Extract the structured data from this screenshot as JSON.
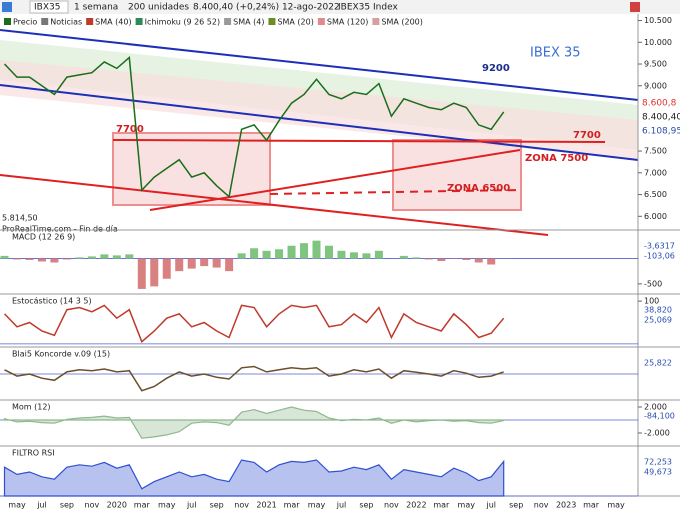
{
  "toolbar": {
    "symbol": "IBX35",
    "period": "1 semana",
    "units": "200 unidades",
    "quote": "8.400,40 (+0,24%) 12-ago-2022",
    "instrument": "IBEX35 Index"
  },
  "legend_items": [
    {
      "label": "Precio",
      "color": "#1a6e1a"
    },
    {
      "label": "Noticias",
      "color": "#777777"
    },
    {
      "label": "SMA (40)",
      "color": "#c0392b"
    },
    {
      "label": "Ichimoku (9 26 52)",
      "color": "#2e8b57"
    },
    {
      "label": "SMA (4)",
      "color": "#999999"
    },
    {
      "label": "SMA (20)",
      "color": "#6b8e23"
    },
    {
      "label": "SMA (120)",
      "color": "#e08a8a"
    },
    {
      "label": "SMA (200)",
      "color": "#d4a0a0"
    }
  ],
  "footer": "ProRealTime.com - Fin de día",
  "x_axis_labels": [
    "may",
    "jul",
    "sep",
    "nov",
    "2020",
    "mar",
    "may",
    "jul",
    "sep",
    "nov",
    "2021",
    "mar",
    "may",
    "jul",
    "sep",
    "nov",
    "2022",
    "mar",
    "may",
    "jul",
    "sep",
    "nov",
    "2023",
    "mar",
    "may"
  ],
  "chart_data": [
    {
      "type": "line",
      "title": "IBEX 35",
      "series": [
        {
          "name": "Precio",
          "color": "#1a6e1a",
          "values": [
            9500,
            9200,
            9200,
            9000,
            8800,
            9200,
            9250,
            9300,
            9550,
            9400,
            9650,
            6600,
            6900,
            7100,
            7300,
            6900,
            7000,
            6700,
            6450,
            8000,
            8100,
            7750,
            8200,
            8600,
            8800,
            9150,
            8800,
            8700,
            8850,
            8800,
            9050,
            8300,
            8700,
            8600,
            8500,
            8450,
            8600,
            8500,
            8100,
            8000,
            8400
          ]
        }
      ],
      "ylim": [
        5800,
        10650
      ],
      "yticks": [
        {
          "value": 10500,
          "label": "10.500"
        },
        {
          "value": 10000,
          "label": "10.000"
        },
        {
          "value": 9500,
          "label": "9.500"
        },
        {
          "value": 9000,
          "label": "9.000"
        },
        {
          "value": 7500,
          "label": "7.500"
        },
        {
          "value": 7000,
          "label": "7.000"
        },
        {
          "value": 6500,
          "label": "6.500"
        },
        {
          "value": 6000,
          "label": "6.000"
        }
      ],
      "annotations": {
        "level_9200": "9200",
        "level_7700_left": "7700",
        "level_7700_right": "7700",
        "zone_7500": "ZONA 7500",
        "zone_6500": "ZONA 6500",
        "low": "5.814,50"
      },
      "price_labels": [
        {
          "text": "8.600,8",
          "color": "#e03030"
        },
        {
          "text": "8.400,40",
          "color": "#222222"
        },
        {
          "text": "6.108,95",
          "color": "#2a4db0"
        }
      ]
    },
    {
      "type": "bar",
      "title": "MACD (12 26 9)",
      "values": [
        50,
        -20,
        -30,
        -60,
        -80,
        -20,
        20,
        40,
        80,
        60,
        80,
        -600,
        -550,
        -400,
        -250,
        -200,
        -150,
        -180,
        -250,
        100,
        200,
        150,
        180,
        250,
        300,
        350,
        250,
        150,
        120,
        100,
        150,
        0,
        50,
        20,
        -20,
        -50,
        -10,
        -30,
        -80,
        -120,
        -4
      ],
      "ylim": [
        -680,
        520
      ],
      "yticks": [
        {
          "value": -500,
          "label": "-500"
        }
      ],
      "side_labels": [
        "-3,6317",
        "-103,06"
      ]
    },
    {
      "type": "line",
      "title": "Estocástico (14 3 5)",
      "color": "#c0392b",
      "values": [
        70,
        40,
        50,
        30,
        20,
        80,
        85,
        75,
        90,
        60,
        80,
        5,
        30,
        60,
        70,
        40,
        50,
        30,
        15,
        90,
        85,
        40,
        70,
        90,
        85,
        90,
        40,
        45,
        70,
        50,
        85,
        15,
        70,
        50,
        40,
        30,
        70,
        45,
        15,
        25,
        60
      ],
      "ylim": [
        -5,
        112
      ],
      "yticks": [
        100
      ],
      "side_labels": [
        "38,820",
        "25,069"
      ]
    },
    {
      "type": "line",
      "title": "Blai5 Koncorde v.09 (15)",
      "color": "#6b4f2a",
      "values": [
        10,
        -5,
        0,
        -10,
        -15,
        5,
        10,
        8,
        12,
        5,
        8,
        -40,
        -30,
        -10,
        5,
        -5,
        0,
        -8,
        -12,
        15,
        18,
        5,
        10,
        15,
        12,
        15,
        -5,
        0,
        10,
        5,
        12,
        -10,
        8,
        4,
        0,
        -5,
        8,
        2,
        -8,
        -5,
        5
      ],
      "ylim": [
        -60,
        60
      ],
      "yticks": [],
      "side_labels": [
        "25,822"
      ]
    },
    {
      "type": "area",
      "title": "Mom (12)",
      "color": "#8fb88f",
      "values": [
        200,
        -300,
        -200,
        -400,
        -500,
        100,
        300,
        400,
        600,
        300,
        400,
        -2800,
        -2600,
        -2300,
        -1800,
        -500,
        -300,
        -400,
        -800,
        1200,
        1600,
        1000,
        1500,
        2000,
        1500,
        1300,
        300,
        -100,
        100,
        0,
        300,
        -500,
        0,
        -300,
        -100,
        0,
        -200,
        -100,
        -400,
        -500,
        -84
      ],
      "ylim": [
        -3850,
        2770
      ],
      "yticks": [
        {
          "value": 2000,
          "label": "2.000"
        },
        {
          "value": -2000,
          "label": "-2.000"
        }
      ],
      "side_labels": [
        "-84,100"
      ]
    },
    {
      "type": "area",
      "title": "FILTRO RSI",
      "color": "#3050d0",
      "values": [
        60,
        45,
        50,
        40,
        35,
        60,
        65,
        62,
        70,
        58,
        65,
        15,
        30,
        40,
        50,
        40,
        45,
        35,
        30,
        75,
        70,
        50,
        65,
        72,
        70,
        75,
        50,
        52,
        60,
        55,
        65,
        35,
        55,
        50,
        45,
        40,
        58,
        48,
        32,
        40,
        72
      ],
      "ylim": [
        0,
        100
      ],
      "yticks": [],
      "side_labels": [
        "72,253",
        "49,673"
      ]
    }
  ]
}
